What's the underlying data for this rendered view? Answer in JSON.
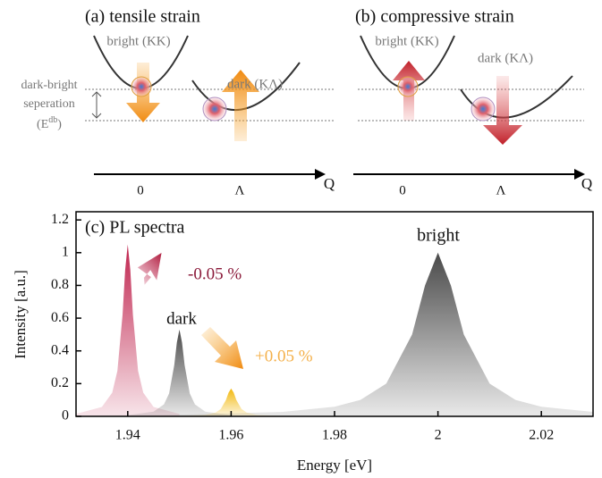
{
  "panels": {
    "a": {
      "title": "(a) tensile strain",
      "bright_label": "bright (KK)",
      "dark_label": "dark (KΛ)",
      "sep_line1": "dark-bright",
      "sep_line2": "seperation",
      "sep_open": "(",
      "sep_symbol": "E",
      "sep_sup": "db",
      "sep_close": ")",
      "k_zero": "0",
      "k_lambda": "Λ",
      "k_axis": "Q"
    },
    "b": {
      "title": "(b) compressive strain",
      "bright_label": "bright (KK)",
      "dark_label": "dark (KΛ)",
      "k_zero": "0",
      "k_lambda": "Λ",
      "k_axis": "Q"
    }
  },
  "chart_data": {
    "type": "area",
    "title": "(c) PL spectra",
    "x_label": "Energy [eV]",
    "y_label": "Intensity [a.u.]",
    "xlim": [
      1.93,
      2.03
    ],
    "xticks": [
      1.94,
      1.96,
      1.98,
      2,
      2.02
    ],
    "ylim": [
      0,
      1.25
    ],
    "yticks": [
      0,
      0.2,
      0.4,
      0.6,
      0.8,
      1,
      1.2
    ],
    "series": [
      {
        "name": "-0.05 %",
        "color": "#c0254f",
        "x": [
          1.93,
          1.935,
          1.937,
          1.938,
          1.939,
          1.9395,
          1.94,
          1.9405,
          1.941,
          1.942,
          1.943,
          1.945,
          1.95
        ],
        "values": [
          0.015,
          0.057,
          0.145,
          0.278,
          0.62,
          0.894,
          1.05,
          0.894,
          0.62,
          0.278,
          0.145,
          0.057,
          0.015
        ]
      },
      {
        "name": "dark",
        "color": "#4a4a4a",
        "x": [
          1.94,
          1.945,
          1.947,
          1.948,
          1.949,
          1.9495,
          1.95,
          1.9505,
          1.951,
          1.952,
          1.953,
          1.955,
          1.96
        ],
        "values": [
          0.0075,
          0.029,
          0.073,
          0.14,
          0.313,
          0.451,
          0.53,
          0.451,
          0.313,
          0.14,
          0.073,
          0.029,
          0.0075
        ]
      },
      {
        "name": "+0.05 %",
        "color": "#f2b90f",
        "x": [
          1.95,
          1.955,
          1.957,
          1.958,
          1.959,
          1.9595,
          1.96,
          1.9605,
          1.961,
          1.962,
          1.963,
          1.965,
          1.97
        ],
        "values": [
          0.002,
          0.009,
          0.023,
          0.045,
          0.1,
          0.145,
          0.17,
          0.145,
          0.1,
          0.045,
          0.023,
          0.009,
          0.002
        ]
      },
      {
        "name": "bright",
        "color": "#4a4a4a",
        "x": [
          1.93,
          1.95,
          1.97,
          1.98,
          1.985,
          1.99,
          1.995,
          1.9975,
          2,
          2.0025,
          2.005,
          2.01,
          2.015,
          2.02,
          2.03
        ],
        "values": [
          0.005,
          0.01,
          0.027,
          0.059,
          0.1,
          0.2,
          0.5,
          0.8,
          1,
          0.8,
          0.5,
          0.2,
          0.1,
          0.059,
          0.027
        ]
      }
    ]
  }
}
